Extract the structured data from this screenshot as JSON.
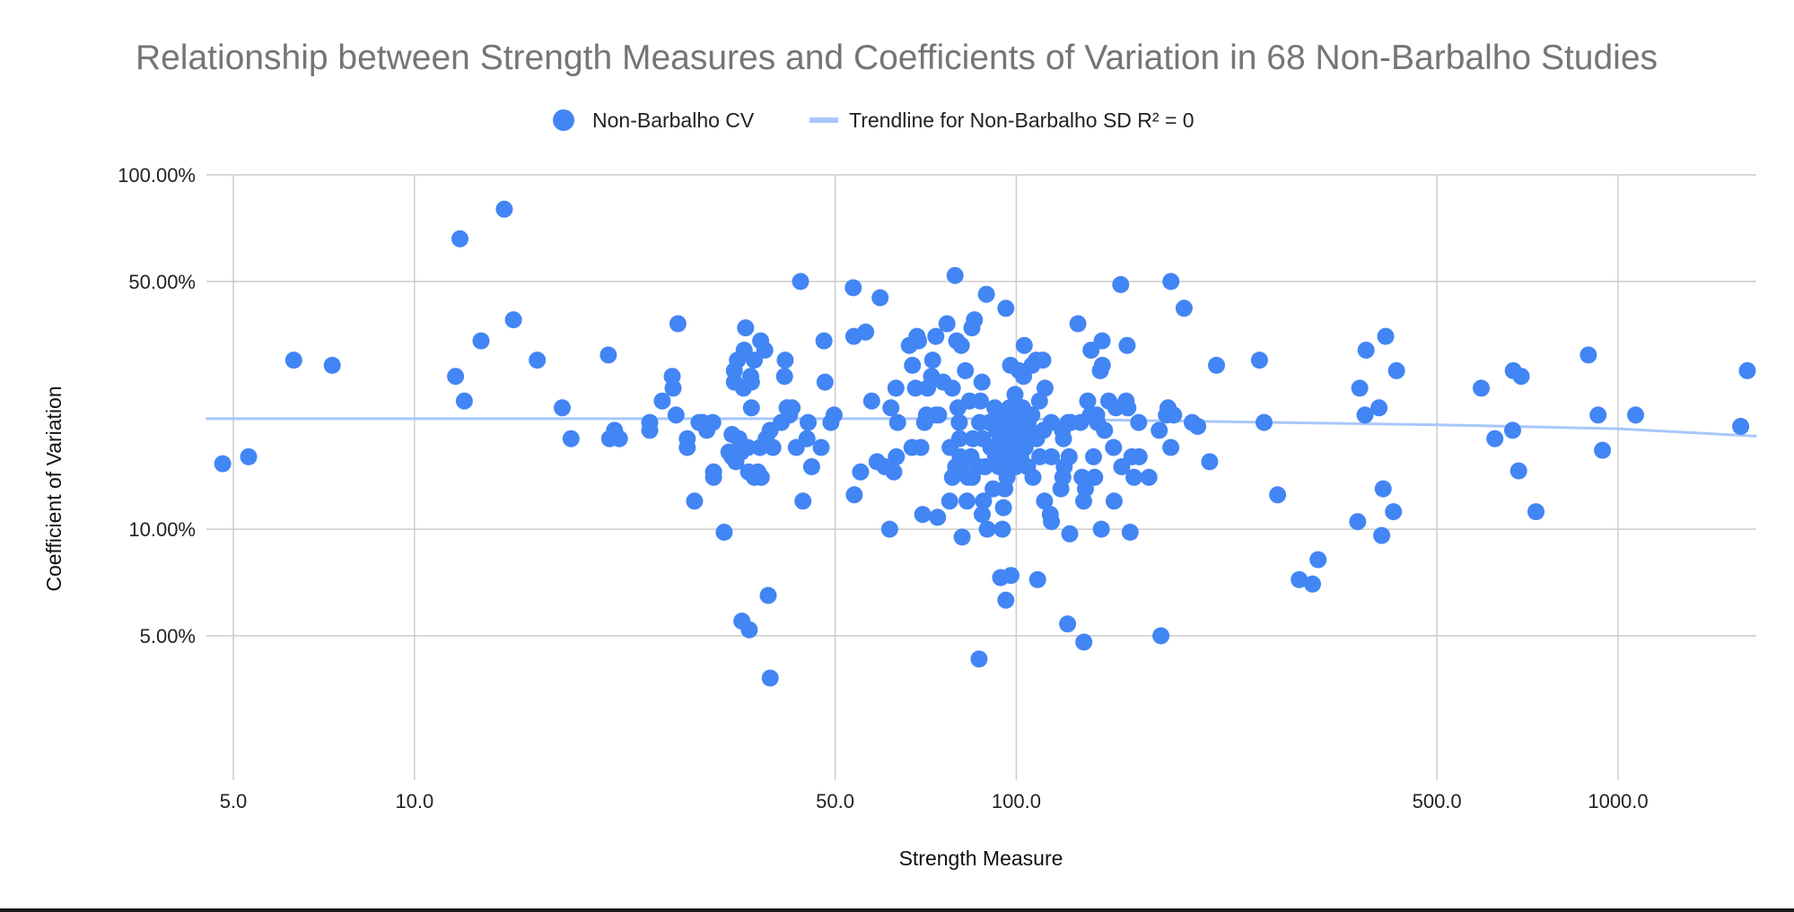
{
  "chart_data": {
    "type": "scatter",
    "title": "Relationship between Strength Measures and Coefficients of Variation in 68 Non-Barbalho Studies",
    "xlabel": "Strength Measure",
    "ylabel": "Coefficient of Variation",
    "x_scale": "log",
    "y_scale": "log",
    "xlim": [
      4.5,
      1700
    ],
    "ylim": [
      0.022,
      1.0
    ],
    "x_ticks": [
      5,
      10,
      50,
      100,
      500,
      1000
    ],
    "x_tick_labels": [
      "5.0",
      "10.0",
      "50.0",
      "100.0",
      "500.0",
      "1000.0"
    ],
    "y_ticks": [
      0.05,
      0.1,
      0.5,
      1.0
    ],
    "y_tick_labels": [
      "5.00%",
      "10.00%",
      "50.00%",
      "100.00%"
    ],
    "grid": true,
    "legend_position": "top",
    "colors": {
      "points": "#4285f4",
      "trendline": "#a8c7fa"
    },
    "series": [
      {
        "name": "Non-Barbalho CV",
        "kind": "points",
        "points": [
          [
            4.8,
            0.153
          ],
          [
            5.3,
            0.16
          ],
          [
            6.3,
            0.3
          ],
          [
            7.3,
            0.29
          ],
          [
            11.7,
            0.27
          ],
          [
            11.9,
            0.66
          ],
          [
            12.1,
            0.23
          ],
          [
            12.9,
            0.34
          ],
          [
            14.1,
            0.8
          ],
          [
            14.6,
            0.39
          ],
          [
            16.0,
            0.3
          ],
          [
            17.6,
            0.22
          ],
          [
            18.2,
            0.18
          ],
          [
            21.0,
            0.31
          ],
          [
            21.1,
            0.18
          ],
          [
            21.5,
            0.19
          ],
          [
            21.9,
            0.18
          ],
          [
            24.6,
            0.2
          ],
          [
            24.6,
            0.19
          ],
          [
            25.8,
            0.23
          ],
          [
            26.8,
            0.27
          ],
          [
            26.9,
            0.25
          ],
          [
            27.2,
            0.21
          ],
          [
            27.4,
            0.38
          ],
          [
            28.4,
            0.18
          ],
          [
            28.4,
            0.17
          ],
          [
            29.2,
            0.12
          ],
          [
            29.7,
            0.2
          ],
          [
            30.1,
            0.2
          ],
          [
            30.6,
            0.19
          ],
          [
            31.3,
            0.2
          ],
          [
            31.4,
            0.14
          ],
          [
            31.4,
            0.145
          ],
          [
            32.7,
            0.098
          ],
          [
            33.3,
            0.165
          ],
          [
            33.7,
            0.185
          ],
          [
            33.7,
            0.16
          ],
          [
            34.0,
            0.26
          ],
          [
            34.0,
            0.28
          ],
          [
            34.2,
            0.155
          ],
          [
            34.4,
            0.3
          ],
          [
            34.6,
            0.18
          ],
          [
            34.9,
            0.165
          ],
          [
            35.0,
            0.055
          ],
          [
            35.2,
            0.25
          ],
          [
            35.3,
            0.32
          ],
          [
            35.5,
            0.37
          ],
          [
            35.8,
            0.17
          ],
          [
            35.9,
            0.145
          ],
          [
            36.0,
            0.052
          ],
          [
            36.2,
            0.27
          ],
          [
            36.3,
            0.22
          ],
          [
            36.3,
            0.26
          ],
          [
            36.7,
            0.14
          ],
          [
            36.7,
            0.3
          ],
          [
            37.2,
            0.145
          ],
          [
            37.5,
            0.17
          ],
          [
            37.6,
            0.34
          ],
          [
            37.7,
            0.14
          ],
          [
            38.2,
            0.32
          ],
          [
            38.4,
            0.18
          ],
          [
            38.7,
            0.065
          ],
          [
            39.0,
            0.19
          ],
          [
            39.0,
            0.038
          ],
          [
            39.4,
            0.17
          ],
          [
            40.7,
            0.2
          ],
          [
            41.2,
            0.27
          ],
          [
            41.3,
            0.3
          ],
          [
            41.6,
            0.22
          ],
          [
            42.0,
            0.21
          ],
          [
            42.4,
            0.22
          ],
          [
            43.1,
            0.17
          ],
          [
            43.8,
            0.5
          ],
          [
            44.2,
            0.12
          ],
          [
            44.9,
            0.18
          ],
          [
            45.1,
            0.2
          ],
          [
            45.7,
            0.15
          ],
          [
            47.4,
            0.17
          ],
          [
            47.9,
            0.34
          ],
          [
            48.1,
            0.26
          ],
          [
            49.2,
            0.2
          ],
          [
            49.8,
            0.21
          ],
          [
            53.6,
            0.48
          ],
          [
            53.7,
            0.35
          ],
          [
            53.8,
            0.125
          ],
          [
            55.1,
            0.145
          ],
          [
            56.2,
            0.36
          ],
          [
            57.5,
            0.23
          ],
          [
            58.7,
            0.155
          ],
          [
            59.4,
            0.45
          ],
          [
            60.5,
            0.15
          ],
          [
            61.6,
            0.1
          ],
          [
            61.9,
            0.22
          ],
          [
            62.6,
            0.145
          ],
          [
            63.1,
            0.25
          ],
          [
            63.2,
            0.16
          ],
          [
            63.5,
            0.2
          ],
          [
            66.4,
            0.33
          ],
          [
            67.1,
            0.17
          ],
          [
            67.2,
            0.29
          ],
          [
            68.0,
            0.25
          ],
          [
            68.4,
            0.35
          ],
          [
            68.8,
            0.34
          ],
          [
            69.4,
            0.17
          ],
          [
            69.9,
            0.11
          ],
          [
            70.4,
            0.2
          ],
          [
            70.9,
            0.21
          ],
          [
            71.2,
            0.25
          ],
          [
            72.3,
            0.27
          ],
          [
            72.6,
            0.3
          ],
          [
            73.5,
            0.21
          ],
          [
            73.5,
            0.35
          ],
          [
            74.0,
            0.108
          ],
          [
            74.3,
            0.21
          ],
          [
            75.6,
            0.26
          ],
          [
            76.7,
            0.38
          ],
          [
            77.5,
            0.12
          ],
          [
            77.6,
            0.17
          ],
          [
            78.3,
            0.14
          ],
          [
            78.3,
            0.25
          ],
          [
            79.1,
            0.52
          ],
          [
            79.3,
            0.15
          ],
          [
            79.6,
            0.34
          ],
          [
            80.0,
            0.22
          ],
          [
            80.4,
            0.2
          ],
          [
            80.5,
            0.18
          ],
          [
            80.7,
            0.16
          ],
          [
            81.0,
            0.33
          ],
          [
            81.1,
            0.15
          ],
          [
            81.3,
            0.095
          ],
          [
            82.3,
            0.28
          ],
          [
            82.8,
            0.12
          ],
          [
            83.1,
            0.14
          ],
          [
            83.6,
            0.23
          ],
          [
            84.1,
            0.16
          ],
          [
            84.4,
            0.37
          ],
          [
            84.5,
            0.14
          ],
          [
            84.7,
            0.18
          ],
          [
            85.2,
            0.39
          ],
          [
            86.5,
            0.15
          ],
          [
            86.7,
            0.043
          ],
          [
            86.9,
            0.2
          ],
          [
            87.2,
            0.23
          ],
          [
            87.7,
            0.26
          ],
          [
            87.8,
            0.11
          ],
          [
            87.9,
            0.18
          ],
          [
            88.2,
            0.12
          ],
          [
            88.7,
            0.15
          ],
          [
            89.2,
            0.46
          ],
          [
            89.5,
            0.1
          ],
          [
            90.3,
            0.2
          ],
          [
            90.7,
            0.17
          ],
          [
            91.5,
            0.13
          ],
          [
            92.1,
            0.22
          ],
          [
            92.4,
            0.16
          ],
          [
            92.7,
            0.19
          ],
          [
            93.3,
            0.21
          ],
          [
            93.6,
            0.15
          ],
          [
            94.0,
            0.18
          ],
          [
            94.2,
            0.073
          ],
          [
            94.8,
            0.1
          ],
          [
            95.2,
            0.115
          ],
          [
            95.6,
            0.2
          ],
          [
            95.7,
            0.13
          ],
          [
            96.0,
            0.17
          ],
          [
            96.1,
            0.42
          ],
          [
            96.1,
            0.063
          ],
          [
            96.5,
            0.14
          ],
          [
            96.8,
            0.16
          ],
          [
            97.4,
            0.22
          ],
          [
            97.8,
            0.29
          ],
          [
            98.0,
            0.074
          ],
          [
            98.7,
            0.19
          ],
          [
            98.7,
            0.18
          ],
          [
            99.1,
            0.17
          ],
          [
            99.3,
            0.21
          ],
          [
            99.5,
            0.24
          ],
          [
            99.7,
            0.15
          ],
          [
            99.9,
            0.2
          ],
          [
            100.5,
            0.16
          ],
          [
            101.1,
            0.28
          ],
          [
            101.5,
            0.18
          ],
          [
            101.7,
            0.16
          ],
          [
            102.4,
            0.22
          ],
          [
            102.8,
            0.27
          ],
          [
            103.1,
            0.33
          ],
          [
            103.4,
            0.17
          ],
          [
            104.4,
            0.15
          ],
          [
            104.6,
            0.2
          ],
          [
            105.1,
            0.19
          ],
          [
            106.1,
            0.21
          ],
          [
            106.2,
            0.29
          ],
          [
            106.6,
            0.14
          ],
          [
            107.9,
            0.3
          ],
          [
            108.1,
            0.18
          ],
          [
            108.5,
            0.072
          ],
          [
            109.3,
            0.23
          ],
          [
            109.4,
            0.16
          ],
          [
            110.7,
            0.3
          ],
          [
            111.0,
            0.19
          ],
          [
            111.4,
            0.12
          ],
          [
            111.6,
            0.25
          ],
          [
            113.9,
            0.11
          ],
          [
            114.3,
            0.2
          ],
          [
            114.4,
            0.16
          ],
          [
            114.4,
            0.105
          ],
          [
            118.6,
            0.13
          ],
          [
            119.3,
            0.19
          ],
          [
            119.5,
            0.14
          ],
          [
            119.8,
            0.18
          ],
          [
            120.1,
            0.15
          ],
          [
            121.7,
            0.054
          ],
          [
            122.0,
            0.2
          ],
          [
            122.4,
            0.16
          ],
          [
            122.7,
            0.097
          ],
          [
            123.1,
            0.2
          ],
          [
            126.6,
            0.38
          ],
          [
            127.8,
            0.2
          ],
          [
            128.6,
            0.14
          ],
          [
            129.4,
            0.12
          ],
          [
            129.5,
            0.048
          ],
          [
            130.3,
            0.13
          ],
          [
            131.4,
            0.23
          ],
          [
            132.8,
            0.21
          ],
          [
            133.1,
            0.32
          ],
          [
            134.4,
            0.16
          ],
          [
            135.0,
            0.14
          ],
          [
            136.0,
            0.21
          ],
          [
            136.4,
            0.2
          ],
          [
            137.9,
            0.28
          ],
          [
            138.4,
            0.1
          ],
          [
            138.9,
            0.34
          ],
          [
            139.0,
            0.29
          ],
          [
            140.2,
            0.19
          ],
          [
            142.4,
            0.23
          ],
          [
            145.1,
            0.17
          ],
          [
            145.4,
            0.12
          ],
          [
            146.4,
            0.22
          ],
          [
            149.1,
            0.49
          ],
          [
            149.7,
            0.15
          ],
          [
            152.2,
            0.23
          ],
          [
            152.8,
            0.33
          ],
          [
            153.3,
            0.22
          ],
          [
            154.6,
            0.098
          ],
          [
            155.6,
            0.16
          ],
          [
            156.9,
            0.14
          ],
          [
            159.7,
            0.2
          ],
          [
            160.0,
            0.16
          ],
          [
            166.1,
            0.14
          ],
          [
            172.8,
            0.19
          ],
          [
            173.9,
            0.05
          ],
          [
            177.6,
            0.21
          ],
          [
            178.7,
            0.22
          ],
          [
            180.6,
            0.17
          ],
          [
            180.7,
            0.5
          ],
          [
            182.6,
            0.21
          ],
          [
            190.0,
            0.42
          ],
          [
            196.0,
            0.2
          ],
          [
            200.2,
            0.195
          ],
          [
            209.6,
            0.155
          ],
          [
            215.1,
            0.29
          ],
          [
            253.6,
            0.3
          ],
          [
            258.0,
            0.2
          ],
          [
            271.8,
            0.125
          ],
          [
            295.2,
            0.072
          ],
          [
            310.6,
            0.07
          ],
          [
            317.3,
            0.082
          ],
          [
            369.2,
            0.105
          ],
          [
            372.1,
            0.25
          ],
          [
            379.7,
            0.21
          ],
          [
            381.3,
            0.32
          ],
          [
            400.6,
            0.22
          ],
          [
            404.7,
            0.096
          ],
          [
            407.0,
            0.13
          ],
          [
            410.9,
            0.35
          ],
          [
            423.4,
            0.112
          ],
          [
            428.3,
            0.28
          ],
          [
            592.3,
            0.25
          ],
          [
            624.1,
            0.18
          ],
          [
            667.9,
            0.19
          ],
          [
            669.6,
            0.28
          ],
          [
            683.5,
            0.146
          ],
          [
            690.2,
            0.27
          ],
          [
            730.3,
            0.112
          ],
          [
            892.5,
            0.31
          ],
          [
            926.2,
            0.21
          ],
          [
            941.9,
            0.167
          ],
          [
            1069.4,
            0.21
          ],
          [
            1598.3,
            0.195
          ],
          [
            1639.8,
            0.28
          ]
        ]
      },
      {
        "name": "Trendline for Non-Barbalho SD R² = 0",
        "kind": "trendline",
        "points": [
          [
            4.5,
            0.205
          ],
          [
            50,
            0.205
          ],
          [
            100,
            0.205
          ],
          [
            500,
            0.197
          ],
          [
            1000,
            0.192
          ],
          [
            1700,
            0.183
          ]
        ]
      }
    ]
  }
}
